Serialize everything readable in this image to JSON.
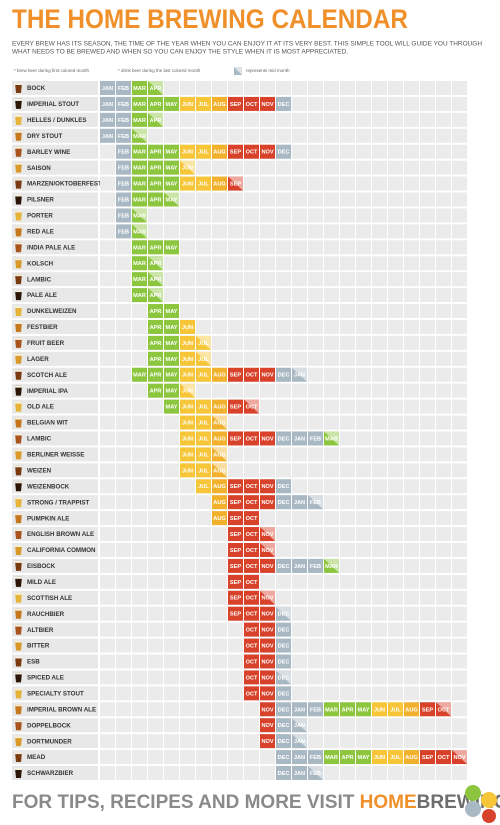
{
  "header": {
    "title": "THE HOME BREWING CALENDAR",
    "description": [
      "EVERY BREW HAS ITS SEASON, THE TIME OF THE YEAR WHEN YOU CAN ENJOY IT AT ITS VERY BEST. THIS SIMPLE TOOL WILL GUIDE YOU THROUGH",
      "WHAT NEEDS TO BE BREWED AND WHEN SO YOU CAN ENJOY THE STYLE WHEN IT IS MOST APPRECIATED."
    ]
  },
  "legend": {
    "brew": "* brew beer during first colored month",
    "drink": "* drink beer during the last colored month",
    "mid": "represents mid month"
  },
  "months": [
    "JAN",
    "FEB",
    "MAR",
    "APR",
    "MAY",
    "JUN",
    "JUL",
    "AUG",
    "SEP",
    "OCT",
    "NOV",
    "DEC"
  ],
  "month_colors": {
    "JAN": "#a9b9c4",
    "FEB": "#a9b9c4",
    "MAR": "#8cc63f",
    "APR": "#8cc63f",
    "MAY": "#8cc63f",
    "JUN": "#f6c638",
    "JUL": "#f6c638",
    "AUG": "#f1b12c",
    "SEP": "#d8422b",
    "OCT": "#d8422b",
    "NOV": "#d8422b",
    "DEC": "#a9b9c4"
  },
  "beers": [
    {
      "name": "BOCK",
      "months": [
        "JAN",
        "FEB",
        "MAR",
        "APR"
      ],
      "mid_month": true
    },
    {
      "name": "IMPERIAL STOUT",
      "months": [
        "JAN",
        "FEB",
        "MAR",
        "APR",
        "MAY",
        "JUN",
        "JUL",
        "AUG",
        "SEP",
        "OCT",
        "NOV",
        "DEC"
      ],
      "mid_month": false
    },
    {
      "name": "HELLES / DUNKLES",
      "months": [
        "JAN",
        "FEB",
        "MAR",
        "APR"
      ],
      "mid_month": true
    },
    {
      "name": "DRY STOUT",
      "months": [
        "JAN",
        "FEB",
        "MAR"
      ],
      "mid_month": true
    },
    {
      "name": "BARLEY WINE",
      "months": [
        "FEB",
        "MAR",
        "APR",
        "MAY",
        "JUN",
        "JUL",
        "AUG",
        "SEP",
        "OCT",
        "NOV",
        "DEC"
      ],
      "mid_month": false
    },
    {
      "name": "SAISON",
      "months": [
        "FEB",
        "MAR",
        "APR",
        "MAY",
        "JUN"
      ],
      "mid_month": true
    },
    {
      "name": "MARZEN/OKTOBERFEST",
      "months": [
        "FEB",
        "MAR",
        "APR",
        "MAY",
        "JUN",
        "JUL",
        "AUG",
        "SEP"
      ],
      "mid_month": true
    },
    {
      "name": "PILSNER",
      "months": [
        "FEB",
        "MAR",
        "APR",
        "MAY"
      ],
      "mid_month": true
    },
    {
      "name": "PORTER",
      "months": [
        "FEB",
        "MAR"
      ],
      "mid_month": true
    },
    {
      "name": "RED ALE",
      "months": [
        "FEB",
        "MAR"
      ],
      "mid_month": true
    },
    {
      "name": "INDIA PALE ALE",
      "months": [
        "MAR",
        "APR",
        "MAY"
      ],
      "mid_month": false
    },
    {
      "name": "KOLSCH",
      "months": [
        "MAR",
        "APR"
      ],
      "mid_month": true
    },
    {
      "name": "LAMBIC",
      "months": [
        "MAR",
        "APR"
      ],
      "mid_month": true
    },
    {
      "name": "PALE ALE",
      "months": [
        "MAR",
        "APR"
      ],
      "mid_month": true
    },
    {
      "name": "DUNKELWEIZEN",
      "months": [
        "APR",
        "MAY"
      ],
      "mid_month": false
    },
    {
      "name": "FESTBIER",
      "months": [
        "APR",
        "MAY",
        "JUN"
      ],
      "mid_month": false
    },
    {
      "name": "FRUIT BEER",
      "months": [
        "APR",
        "MAY",
        "JUN",
        "JUL"
      ],
      "mid_month": true
    },
    {
      "name": "LAGER",
      "months": [
        "APR",
        "MAY",
        "JUN",
        "JUL"
      ],
      "mid_month": true
    },
    {
      "name": "SCOTCH ALE",
      "months": [
        "MAR",
        "APR",
        "MAY",
        "JUN",
        "JUL",
        "AUG",
        "SEP",
        "OCT",
        "NOV",
        "DEC",
        "JAN"
      ],
      "mid_month": true
    },
    {
      "name": "IMPERIAL IPA",
      "months": [
        "APR",
        "MAY",
        "JUN"
      ],
      "mid_month": true
    },
    {
      "name": "OLD ALE",
      "months": [
        "MAY",
        "JUN",
        "JUL",
        "AUG",
        "SEP",
        "OCT"
      ],
      "mid_month": true
    },
    {
      "name": "BELGIAN WIT",
      "months": [
        "JUN",
        "JUL",
        "AUG"
      ],
      "mid_month": true
    },
    {
      "name": "LAMBIC",
      "months": [
        "JUN",
        "JUL",
        "AUG",
        "SEP",
        "OCT",
        "NOV",
        "DEC",
        "JAN",
        "FEB",
        "MAR"
      ],
      "mid_month": true
    },
    {
      "name": "BERLINER WEISSE",
      "months": [
        "JUN",
        "JUL",
        "AUG"
      ],
      "mid_month": true
    },
    {
      "name": "WEIZEN",
      "months": [
        "JUN",
        "JUL",
        "AUG"
      ],
      "mid_month": true
    },
    {
      "name": "WEIZENBOCK",
      "months": [
        "JUL",
        "AUG",
        "SEP",
        "OCT",
        "NOV",
        "DEC"
      ],
      "mid_month": false
    },
    {
      "name": "STRONG / TRAPPIST",
      "months": [
        "AUG",
        "SEP",
        "OCT",
        "NOV",
        "DEC",
        "JAN",
        "FEB"
      ],
      "mid_month": true
    },
    {
      "name": "PUMPKIN ALE",
      "months": [
        "AUG",
        "SEP",
        "OCT"
      ],
      "mid_month": false
    },
    {
      "name": "ENGLISH BROWN ALE",
      "months": [
        "SEP",
        "OCT",
        "NOV"
      ],
      "mid_month": true
    },
    {
      "name": "CALIFORNIA COMMON",
      "months": [
        "SEP",
        "OCT",
        "NOV"
      ],
      "mid_month": true
    },
    {
      "name": "EISBOCK",
      "months": [
        "SEP",
        "OCT",
        "NOV",
        "DEC",
        "JAN",
        "FEB",
        "MAR"
      ],
      "mid_month": true
    },
    {
      "name": "MILD ALE",
      "months": [
        "SEP",
        "OCT"
      ],
      "mid_month": false
    },
    {
      "name": "SCOTTISH ALE",
      "months": [
        "SEP",
        "OCT",
        "NOV"
      ],
      "mid_month": true
    },
    {
      "name": "RAUCHBIER",
      "months": [
        "SEP",
        "OCT",
        "NOV",
        "DEC"
      ],
      "mid_month": true
    },
    {
      "name": "ALTBIER",
      "months": [
        "OCT",
        "NOV",
        "DEC"
      ],
      "mid_month": false
    },
    {
      "name": "BITTER",
      "months": [
        "OCT",
        "NOV",
        "DEC"
      ],
      "mid_month": false
    },
    {
      "name": "ESB",
      "months": [
        "OCT",
        "NOV",
        "DEC"
      ],
      "mid_month": false
    },
    {
      "name": "SPICED ALE",
      "months": [
        "OCT",
        "NOV",
        "DEC"
      ],
      "mid_month": true
    },
    {
      "name": "SPECIALTY STOUT",
      "months": [
        "OCT",
        "NOV",
        "DEC"
      ],
      "mid_month": false
    },
    {
      "name": "IMPERIAL BROWN ALE",
      "months": [
        "NOV",
        "DEC",
        "JAN",
        "FEB",
        "MAR",
        "APR",
        "MAY",
        "JUN",
        "JUL",
        "AUG",
        "SEP",
        "OCT"
      ],
      "mid_month": true
    },
    {
      "name": "DOPPELBOCK",
      "months": [
        "NOV",
        "DEC",
        "JAN"
      ],
      "mid_month": true
    },
    {
      "name": "DORTMUNDER",
      "months": [
        "NOV",
        "DEC",
        "JAN"
      ],
      "mid_month": true
    },
    {
      "name": "MEAD",
      "months": [
        "DEC",
        "JAN",
        "FEB",
        "MAR",
        "APR",
        "MAY",
        "JUN",
        "JUL",
        "AUG",
        "SEP",
        "OCT",
        "NOV"
      ],
      "mid_month": true
    },
    {
      "name": "SCHWARZBIER",
      "months": [
        "DEC",
        "JAN",
        "FEB"
      ],
      "mid_month": true
    }
  ],
  "footer": {
    "text": "FOR TIPS, RECIPES AND MORE VISIT",
    "site_a": "HOME",
    "site_b": "BREWING.COM"
  }
}
